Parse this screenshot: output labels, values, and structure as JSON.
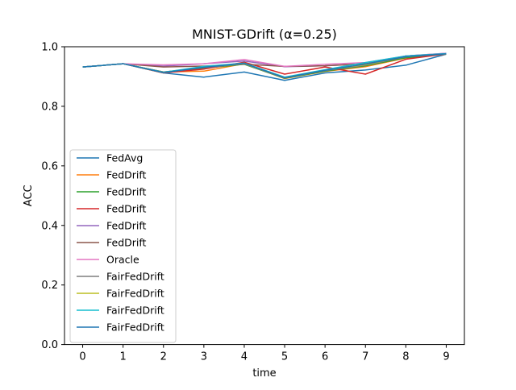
{
  "chart_data": {
    "type": "line",
    "title": "MNIST-GDrift (α=0.25)",
    "xlabel": "time",
    "ylabel": "ACC",
    "x": [
      0,
      1,
      2,
      3,
      4,
      5,
      6,
      7,
      8,
      9
    ],
    "xticks": [
      "0",
      "1",
      "2",
      "3",
      "4",
      "5",
      "6",
      "7",
      "8",
      "9"
    ],
    "yticks": [
      "0.0",
      "0.2",
      "0.4",
      "0.6",
      "0.8",
      "1.0"
    ],
    "ylim": [
      0,
      1
    ],
    "xlim": [
      -0.45,
      9.45
    ],
    "grid": false,
    "legend_position": "lower-left",
    "series": [
      {
        "name": "FedAvg",
        "color": "#1f77b4",
        "values": [
          0.932,
          0.943,
          0.912,
          0.898,
          0.915,
          0.887,
          0.912,
          0.922,
          0.938,
          0.975
        ]
      },
      {
        "name": "FedDrift",
        "color": "#ff7f0e",
        "values": [
          0.932,
          0.943,
          0.915,
          0.918,
          0.943,
          0.893,
          0.917,
          0.933,
          0.962,
          0.975
        ]
      },
      {
        "name": "FedDrift",
        "color": "#2ca02c",
        "values": [
          0.932,
          0.943,
          0.915,
          0.928,
          0.941,
          0.894,
          0.918,
          0.936,
          0.963,
          0.976
        ]
      },
      {
        "name": "FedDrift",
        "color": "#d62728",
        "values": [
          0.932,
          0.943,
          0.912,
          0.925,
          0.948,
          0.908,
          0.932,
          0.908,
          0.958,
          0.976
        ]
      },
      {
        "name": "FedDrift",
        "color": "#9467bd",
        "values": [
          0.932,
          0.943,
          0.935,
          0.943,
          0.952,
          0.933,
          0.936,
          0.943,
          0.969,
          0.978
        ]
      },
      {
        "name": "FedDrift",
        "color": "#8c564b",
        "values": [
          0.932,
          0.943,
          0.932,
          0.935,
          0.941,
          0.934,
          0.936,
          0.943,
          0.969,
          0.976
        ]
      },
      {
        "name": "Oracle",
        "color": "#e377c2",
        "values": [
          0.932,
          0.943,
          0.939,
          0.943,
          0.957,
          0.934,
          0.941,
          0.947,
          0.969,
          0.978
        ]
      },
      {
        "name": "FairFedDrift",
        "color": "#7f7f7f",
        "values": [
          0.932,
          0.943,
          0.915,
          0.93,
          0.942,
          0.895,
          0.92,
          0.938,
          0.966,
          0.976
        ]
      },
      {
        "name": "FairFedDrift",
        "color": "#bcbd22",
        "values": [
          0.932,
          0.943,
          0.913,
          0.932,
          0.943,
          0.897,
          0.922,
          0.94,
          0.968,
          0.976
        ]
      },
      {
        "name": "FairFedDrift",
        "color": "#17becf",
        "values": [
          0.932,
          0.943,
          0.914,
          0.934,
          0.945,
          0.898,
          0.923,
          0.947,
          0.969,
          0.977
        ]
      },
      {
        "name": "FairFedDrift",
        "color": "#1f77b4",
        "values": [
          0.932,
          0.943,
          0.913,
          0.931,
          0.944,
          0.896,
          0.921,
          0.942,
          0.967,
          0.976
        ]
      }
    ]
  }
}
